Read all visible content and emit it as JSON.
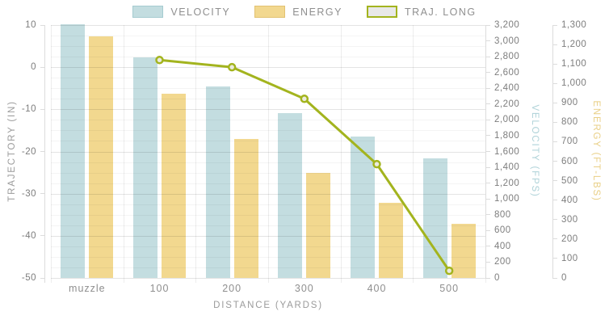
{
  "legend": {
    "items": [
      {
        "label": "VELOCITY",
        "type": "bar",
        "fill": "#c3dde0",
        "border": "#a5cbd0"
      },
      {
        "label": "ENERGY",
        "type": "bar",
        "fill": "#f2d88f",
        "border": "#e2c272"
      },
      {
        "label": "TRAJ. LONG",
        "type": "line",
        "fill": "#e8e8e8",
        "border": "#a3b41e"
      }
    ]
  },
  "chart_data": {
    "type": "bar",
    "categories": [
      "muzzle",
      "100",
      "200",
      "300",
      "400",
      "500"
    ],
    "series": [
      {
        "name": "VELOCITY",
        "type": "bar",
        "axis": "velocity",
        "color": "#c3dde0",
        "values": [
          3215,
          2790,
          2425,
          2090,
          1790,
          1515
        ]
      },
      {
        "name": "ENERGY",
        "type": "bar",
        "axis": "energy",
        "color": "#f2d88f",
        "values": [
          1240,
          945,
          715,
          540,
          385,
          280
        ]
      },
      {
        "name": "TRAJ. LONG",
        "type": "line",
        "axis": "trajectory",
        "color": "#a3b41e",
        "marker_fill": "#ebebdf",
        "values": [
          null,
          1.7,
          0,
          -7.5,
          -23,
          -48.3
        ]
      }
    ],
    "axes": {
      "trajectory": {
        "title": "TRAJECTORY (IN)",
        "side": "left",
        "min": -50,
        "max": 10,
        "step": 10,
        "minor_step": 2.5,
        "title_color": "#9b9b9b"
      },
      "velocity": {
        "title": "VELOCITY (FPS)",
        "side": "right",
        "min": 0,
        "max": 3200,
        "step": 200,
        "title_color": "#aed2d8"
      },
      "energy": {
        "title": "ENERGY (FT-LBS)",
        "side": "right",
        "min": 0,
        "max": 1300,
        "step": 100,
        "title_color": "#e9cf85"
      }
    },
    "xlabel": "DISTANCE (YARDS)",
    "grid": true,
    "legend_position": "top"
  }
}
